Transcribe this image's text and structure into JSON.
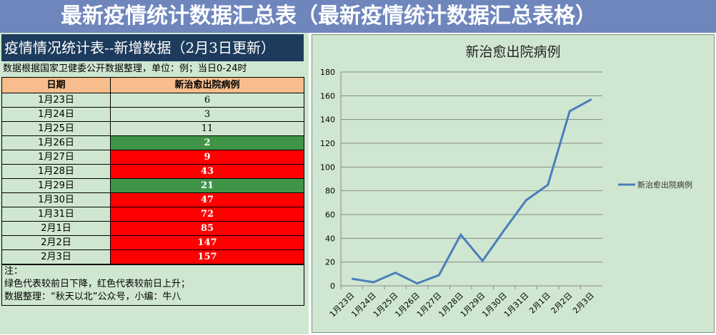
{
  "sheet": {
    "title": "疫情情况统计表--新增数据（2月3日更新）",
    "note": "数据根据国家卫健委公开数据整理，单位：例；当日0-24时",
    "headers": [
      "日期",
      "新治愈出院病例"
    ],
    "rows": [
      {
        "date": "1月23日",
        "value": "6",
        "trend": "none"
      },
      {
        "date": "1月24日",
        "value": "3",
        "trend": "none"
      },
      {
        "date": "1月25日",
        "value": "11",
        "trend": "none"
      },
      {
        "date": "1月26日",
        "value": "2",
        "trend": "down"
      },
      {
        "date": "1月27日",
        "value": "9",
        "trend": "up"
      },
      {
        "date": "1月28日",
        "value": "43",
        "trend": "up"
      },
      {
        "date": "1月29日",
        "value": "21",
        "trend": "down"
      },
      {
        "date": "1月30日",
        "value": "47",
        "trend": "up"
      },
      {
        "date": "1月31日",
        "value": "72",
        "trend": "up"
      },
      {
        "date": "2月1日",
        "value": "85",
        "trend": "up"
      },
      {
        "date": "2月2日",
        "value": "147",
        "trend": "up"
      },
      {
        "date": "2月3日",
        "value": "157",
        "trend": "up"
      }
    ],
    "footer": [
      "注：",
      "绿色代表较前日下降，红色代表较前日上升；",
      "数据整理：“秋天以北”公众号，小编：牛八"
    ]
  },
  "banner": "最新疫情统计数据汇总表（最新疫情统计数据汇总表格）",
  "chart_data": {
    "type": "line",
    "title": "新治愈出院病例",
    "categories": [
      "1月23日",
      "1月24日",
      "1月25日",
      "1月26日",
      "1月27日",
      "1月28日",
      "1月29日",
      "1月30日",
      "1月31日",
      "2月1日",
      "2月2日",
      "2月3日"
    ],
    "series": [
      {
        "name": "新治愈出院病例",
        "values": [
          6,
          3,
          11,
          2,
          9,
          43,
          21,
          47,
          72,
          85,
          147,
          157
        ],
        "color": "#4a7ebb"
      }
    ],
    "ylim": [
      0,
      180
    ],
    "yticks": [
      0,
      20,
      40,
      60,
      80,
      100,
      120,
      140,
      160,
      180
    ],
    "grid": true,
    "legend": "right"
  },
  "colors": {
    "up": "#ff0000",
    "down": "#3f9447",
    "header": "#f8bd8c",
    "title_bg": "#1d3b5c",
    "background": "#cfe7d0"
  }
}
